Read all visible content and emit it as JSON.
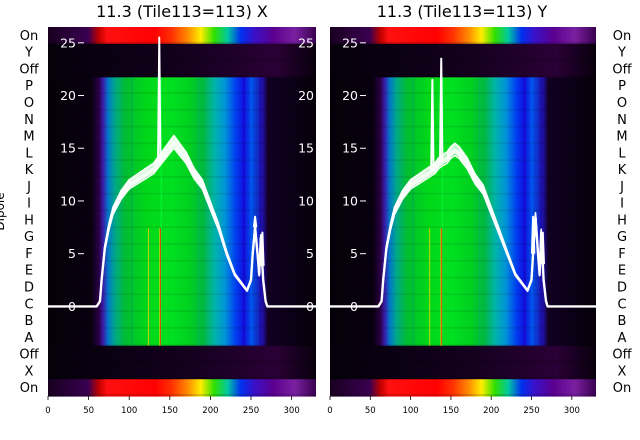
{
  "chart_data": [
    {
      "type": "heatmap",
      "title": "11.3 (Tile113=113) X",
      "ylabel": "Dipole",
      "xlim": [
        0,
        330
      ],
      "x_ticks": [
        0,
        50,
        100,
        150,
        200,
        250,
        300
      ],
      "dipole_labels": [
        "On",
        "Y",
        "Off",
        "P",
        "O",
        "N",
        "M",
        "L",
        "K",
        "J",
        "I",
        "H",
        "G",
        "F",
        "E",
        "D",
        "C",
        "B",
        "A",
        "Off",
        "X",
        "On"
      ],
      "overlay": {
        "type": "line",
        "color": "#ffffff",
        "ylim": [
          -8.5,
          26.5
        ],
        "y_ticks": [
          0,
          5,
          10,
          15,
          20,
          25
        ],
        "profile_x": [
          0,
          60,
          64,
          66,
          70,
          75,
          80,
          90,
          100,
          110,
          120,
          130,
          135,
          140,
          145,
          150,
          155,
          160,
          165,
          170,
          180,
          190,
          200,
          210,
          220,
          230,
          240,
          245,
          250,
          252,
          255,
          258,
          260,
          262,
          265,
          268,
          270,
          275,
          330
        ],
        "profile_y": [
          0,
          0,
          0.5,
          2.5,
          5.5,
          7.5,
          9,
          10.5,
          11.5,
          12,
          12.5,
          13,
          13.5,
          14,
          14.5,
          15,
          15.5,
          15,
          14.5,
          14,
          12.5,
          11.5,
          9.5,
          7.5,
          5,
          3,
          2,
          1.5,
          2.5,
          5,
          7.5,
          5,
          3,
          6.5,
          2.5,
          0.5,
          0,
          0,
          0
        ],
        "spikes": [
          {
            "x": 137,
            "y": 25.5
          },
          {
            "x": 255,
            "y": 8.5
          },
          {
            "x": 264,
            "y": 7
          }
        ]
      }
    },
    {
      "type": "heatmap",
      "title": "11.3 (Tile113=113) Y",
      "xlim": [
        0,
        330
      ],
      "x_ticks": [
        0,
        50,
        100,
        150,
        200,
        250,
        300
      ],
      "dipole_labels": [
        "On",
        "Y",
        "Off",
        "P",
        "O",
        "N",
        "M",
        "L",
        "K",
        "J",
        "I",
        "H",
        "G",
        "F",
        "E",
        "D",
        "C",
        "B",
        "A",
        "Off",
        "X",
        "On"
      ],
      "overlay": {
        "type": "line",
        "color": "#ffffff",
        "ylim": [
          -8.5,
          26.5
        ],
        "y_ticks": [
          0,
          5,
          10,
          15,
          20,
          25
        ],
        "profile_x": [
          0,
          60,
          64,
          66,
          70,
          75,
          80,
          90,
          100,
          110,
          120,
          130,
          135,
          140,
          145,
          150,
          155,
          160,
          165,
          170,
          180,
          190,
          200,
          210,
          220,
          230,
          240,
          245,
          250,
          252,
          255,
          258,
          260,
          262,
          265,
          268,
          270,
          275,
          330
        ],
        "profile_y": [
          0,
          0,
          0.5,
          2.5,
          5.5,
          7.5,
          9,
          10.5,
          11.5,
          12,
          12.5,
          13,
          13.5,
          13.8,
          14,
          14.5,
          14.8,
          14.5,
          14,
          13.5,
          12,
          11,
          9,
          7,
          5,
          3,
          2,
          1.5,
          2.5,
          5,
          8.5,
          5,
          3,
          7,
          2.5,
          0.5,
          0,
          0,
          0
        ],
        "spikes": [
          {
            "x": 127,
            "y": 21.5
          },
          {
            "x": 138,
            "y": 23.5
          },
          {
            "x": 252,
            "y": 8.5
          },
          {
            "x": 264,
            "y": 7
          }
        ]
      }
    }
  ]
}
